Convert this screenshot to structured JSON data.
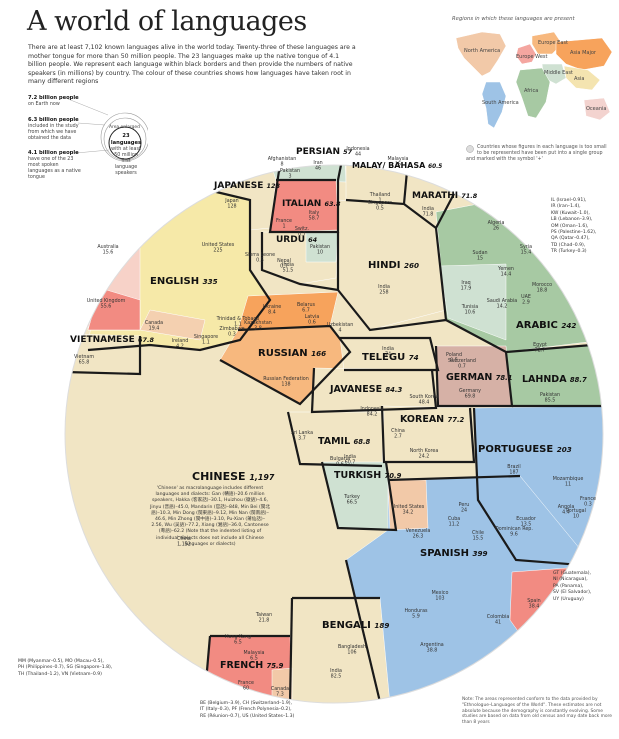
{
  "title": "A world of languages",
  "intro": "There are at least 7,102 known languages alive in the world today. Twenty-three of these languages are a mother tongue for more than 50 million people. The 23 languages make up the native tongue of 4.1 billion people. We represent each language within black borders and then provide the numbers of native speakers (in millions) by country. The colour of these countries shows how languages have taken root in many different regions",
  "key": {
    "a_head": "7.2 billion people",
    "a_sub": "on Earth now",
    "b_head": "6.3 billion people",
    "b_sub": "included in the study from which we have obtained the data",
    "c_head": "4.1 billion people",
    "c_sub": "have one of the 23 most spoken languages as a native tongue",
    "area": "Area enlarged",
    "center_head": "23 languages",
    "center_sub": "with at least 50 million first language speakers"
  },
  "map": {
    "title": "Regions in which these languages are present",
    "regions": [
      "North America",
      "Europe West",
      "Europe East",
      "Asia Major",
      "Asia",
      "Middle East",
      "Africa",
      "South America",
      "Oceania"
    ],
    "colors": {
      "north_america": "#f2c9a8",
      "europe_west": "#f4a6a0",
      "europe_east": "#f7b87e",
      "asia_major": "#f7a35c",
      "asia": "#f4e4b0",
      "middle_east": "#cfe1d2",
      "africa": "#a7c9a3",
      "south_america": "#9ec3e6",
      "oceania": "#f3d3cf"
    },
    "note": "Countries whose figures in each language is too small to be represented have been put into a single group and marked with the symbol '+'"
  },
  "languages": [
    {
      "name": "CHINESE",
      "value": "1,197"
    },
    {
      "name": "ENGLISH",
      "value": "335"
    },
    {
      "name": "JAPANESE",
      "value": "128"
    },
    {
      "name": "PERSIAN",
      "value": "57"
    },
    {
      "name": "MALAY/ BAHASA",
      "value": "60.5"
    },
    {
      "name": "ITALIAN",
      "value": "63.8"
    },
    {
      "name": "MARATHI",
      "value": "71.8"
    },
    {
      "name": "URDU",
      "value": "64"
    },
    {
      "name": "HINDI",
      "value": "260"
    },
    {
      "name": "ARABIC",
      "value": "242"
    },
    {
      "name": "VIETNAMESE",
      "value": "67.8"
    },
    {
      "name": "RUSSIAN",
      "value": "166"
    },
    {
      "name": "TELEGU",
      "value": "74"
    },
    {
      "name": "GERMAN",
      "value": "78.1"
    },
    {
      "name": "LAHNDA",
      "value": "88.7"
    },
    {
      "name": "JAVANESE",
      "value": "84.3"
    },
    {
      "name": "KOREAN",
      "value": "77.2"
    },
    {
      "name": "TAMIL",
      "value": "68.8"
    },
    {
      "name": "PORTUGUESE",
      "value": "203"
    },
    {
      "name": "TURKISH",
      "value": "70.9"
    },
    {
      "name": "SPANISH",
      "value": "399"
    },
    {
      "name": "BENGALI",
      "value": "189"
    },
    {
      "name": "FRENCH",
      "value": "75.9"
    }
  ],
  "countries": [
    {
      "name": "Afghanistan",
      "value": "8"
    },
    {
      "name": "Pakistan",
      "value": "3"
    },
    {
      "name": "Iran",
      "value": "46"
    },
    {
      "name": "Indonesia",
      "value": "44"
    },
    {
      "name": "Malaysia",
      "value": "15"
    },
    {
      "name": "Thailand",
      "value": "1"
    },
    {
      "name": "Singapore",
      "value": "0.5"
    },
    {
      "name": "Japan",
      "value": "128"
    },
    {
      "name": "Italy",
      "value": "58.7"
    },
    {
      "name": "France",
      "value": "1"
    },
    {
      "name": "Switz.",
      "value": "0.7"
    },
    {
      "name": "India",
      "value": "71.8"
    },
    {
      "name": "United States",
      "value": "225"
    },
    {
      "name": "Australia",
      "value": "15.6"
    },
    {
      "name": "Sierra Leone",
      "value": "0.5"
    },
    {
      "name": "Nepal",
      "value": "0.7"
    },
    {
      "name": "India",
      "value": "51.5"
    },
    {
      "name": "Pakistan",
      "value": "10"
    },
    {
      "name": "India",
      "value": "258"
    },
    {
      "name": "Algeria",
      "value": "26"
    },
    {
      "name": "Syria",
      "value": "15.4"
    },
    {
      "name": "Sudan",
      "value": "15"
    },
    {
      "name": "Yemen",
      "value": "14.4"
    },
    {
      "name": "Morocco",
      "value": "18.8"
    },
    {
      "name": "Iraq",
      "value": "17.9"
    },
    {
      "name": "Saudi Arabia",
      "value": "14.2"
    },
    {
      "name": "Tunisia",
      "value": "10.6"
    },
    {
      "name": "Egypt",
      "value": "72.7"
    },
    {
      "name": "UAE",
      "value": "2.9"
    },
    {
      "name": "United Kingdom",
      "value": "55.6"
    },
    {
      "name": "Canada",
      "value": "19.4"
    },
    {
      "name": "Ireland",
      "value": "4.2"
    },
    {
      "name": "Singapore",
      "value": "1.1"
    },
    {
      "name": "Zimbabwe",
      "value": "0.3"
    },
    {
      "name": "Trinidad & Tobago",
      "value": "1.1"
    },
    {
      "name": "Ukraine",
      "value": "8.4"
    },
    {
      "name": "Belarus",
      "value": "6.7"
    },
    {
      "name": "Kazakhstan",
      "value": "3.8"
    },
    {
      "name": "Latvia",
      "value": "0.6"
    },
    {
      "name": "Uzbekistan",
      "value": "4"
    },
    {
      "name": "Russian Federation",
      "value": "138"
    },
    {
      "name": "India",
      "value": "74"
    },
    {
      "name": "Vietnam",
      "value": "65.8"
    },
    {
      "name": "Poland",
      "value": "0.5"
    },
    {
      "name": "Switzerland",
      "value": "0.7"
    },
    {
      "name": "Germany",
      "value": "69.8"
    },
    {
      "name": "Pakistan",
      "value": "85.5"
    },
    {
      "name": "Indonesia",
      "value": "84.2"
    },
    {
      "name": "South Korea",
      "value": "48.4"
    },
    {
      "name": "North Korea",
      "value": "24.2"
    },
    {
      "name": "China",
      "value": "2.7"
    },
    {
      "name": "India",
      "value": "60.7"
    },
    {
      "name": "Sri Lanka",
      "value": "3.7"
    },
    {
      "name": "Brazil",
      "value": "187"
    },
    {
      "name": "Mozambique",
      "value": "11"
    },
    {
      "name": "Angola",
      "value": "4.4"
    },
    {
      "name": "Portugal",
      "value": "10"
    },
    {
      "name": "France",
      "value": "0.3"
    },
    {
      "name": "Turkey",
      "value": "66.5"
    },
    {
      "name": "Bulgaria",
      "value": "0.6"
    },
    {
      "name": "United States",
      "value": "34.2"
    },
    {
      "name": "Peru",
      "value": "24"
    },
    {
      "name": "Cuba",
      "value": "11.2"
    },
    {
      "name": "Venezuela",
      "value": "26.3"
    },
    {
      "name": "Chile",
      "value": "15.5"
    },
    {
      "name": "Dominican Rep.",
      "value": "9.6"
    },
    {
      "name": "Ecuador",
      "value": "13.5"
    },
    {
      "name": "Mexico",
      "value": "103"
    },
    {
      "name": "Spain",
      "value": "38.4"
    },
    {
      "name": "Honduras",
      "value": "5.9"
    },
    {
      "name": "Colombia",
      "value": "41"
    },
    {
      "name": "Argentina",
      "value": "38.8"
    },
    {
      "name": "Bangladesh",
      "value": "106"
    },
    {
      "name": "India",
      "value": "82.5"
    },
    {
      "name": "China",
      "value": "1,152"
    },
    {
      "name": "Taiwan",
      "value": "21.8"
    },
    {
      "name": "Hong Kong",
      "value": "6.5"
    },
    {
      "name": "Malaysia",
      "value": "6.5"
    },
    {
      "name": "France",
      "value": "60"
    },
    {
      "name": "Canada",
      "value": "7.3"
    }
  ],
  "chinese_note": "'Chinese' as macrolanguage includes different languages and dialects: Gan (贛語)–20.6 million speakers, Hakka (客家話)–30.1, Huizhou (徽語)–4.6, Jinyu (晋語)–45.0, Mandarin (官話)–848, Min Bei (閩北語)–10.3, Min Dong (閩東語)–9.12, Min Nan (閩南語)–46.6, Min Zhong (閩中語)–3.10, Pu-Xian (莆仙話)–2.56, Wu (吴語)–77.2, Xiang (湘語)–36.0, Cantonese (粵語)–62.2 (Note that the indented listing of individual dialects does not include all Chinese languages or dialects)",
  "abbr_right": [
    "IL (Israel–0.91),",
    "IR (Iran–1.4),",
    "KW (Kuwait–1.0),",
    "LB (Lebanon–3.9),",
    "OM (Oman–1.6),",
    "PS (Palestine–1.62),",
    "QA (Qatar–0.47),",
    "TD (Chad–0.9),",
    "TR (Turkey–0.3)"
  ],
  "abbr_right2": [
    "GT (Guatemala),",
    "NI (Nicaragua),",
    "PA (Panama),",
    "SV (El Salvador),",
    "UY (Uruguay)"
  ],
  "abbr_left": [
    "MM (Myanmar–0.5), MO (Macau–0.5),",
    "PH (Philippines–0.7), SG (Singapore–1.8),",
    "TH (Thailand–1.2), VN (Vietnam–0.9)"
  ],
  "abbr_bottom": [
    "BE (Belgium–3.9), CH (Switzerland–1.9),",
    "IT (Italy–0.3), PF (French Polynesia–0.2),",
    "RE (Réunion–0.7), US (United States–1.3)"
  ],
  "source": "Note: The areas represented conform to the data provided by \"Ethnologue–Languages of the World\". These estimates are not absolute because the demography is constantly evolving. Some studies are based on data from old census and may date back more than 8 years"
}
